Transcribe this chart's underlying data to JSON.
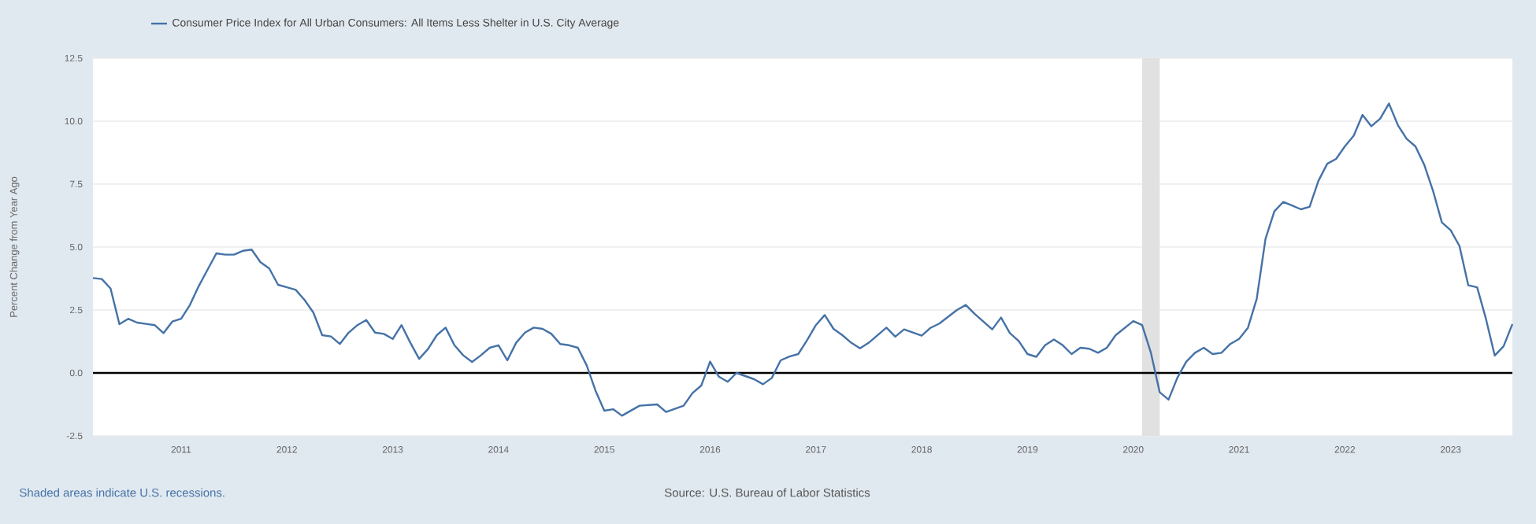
{
  "chart_data": {
    "type": "line",
    "ylabel": "Percent Change from Year Ago",
    "annotations": [
      "Shaded areas indicate U.S. recessions.",
      "Source: U.S. Bureau of Labor Statistics"
    ],
    "legend": "top left",
    "grid": "y",
    "line_style": "solid",
    "marker": "none",
    "xlim": [
      "2010-03",
      "2023-08"
    ],
    "xticks": [
      {
        "value": "2011",
        "label": "2011"
      },
      {
        "value": "2012",
        "label": "2012"
      },
      {
        "value": "2013",
        "label": "2013"
      },
      {
        "value": "2014",
        "label": "2014"
      },
      {
        "value": "2015",
        "label": "2015"
      },
      {
        "value": "2016",
        "label": "2016"
      },
      {
        "value": "2017",
        "label": "2017"
      },
      {
        "value": "2018",
        "label": "2018"
      },
      {
        "value": "2019",
        "label": "2019"
      },
      {
        "value": "2020",
        "label": "2020"
      },
      {
        "value": "2021",
        "label": "2021"
      },
      {
        "value": "2022",
        "label": "2022"
      },
      {
        "value": "2023",
        "label": "2023"
      }
    ],
    "ylim": [
      -2.5,
      12.5
    ],
    "yticks": [
      {
        "value": -2.5,
        "label": "-2.5"
      },
      {
        "value": 0,
        "label": "0.0"
      },
      {
        "value": 2.5,
        "label": "2.5"
      },
      {
        "value": 5,
        "label": "5.0"
      },
      {
        "value": 7.5,
        "label": "7.5"
      },
      {
        "value": 10,
        "label": "10.0"
      },
      {
        "value": 12.5,
        "label": "12.5"
      }
    ],
    "bands": [
      {
        "axis": "x",
        "from": "2020-02",
        "to": "2020-04",
        "color": "#e1e1e1"
      }
    ],
    "ref_lines": [
      {
        "axis": "y",
        "value": 0,
        "color": "#000000"
      }
    ],
    "x": [
      "2010-03",
      "2010-04",
      "2010-05",
      "2010-06",
      "2010-07",
      "2010-08",
      "2010-09",
      "2010-10",
      "2010-11",
      "2010-12",
      "2011-01",
      "2011-02",
      "2011-03",
      "2011-04",
      "2011-05",
      "2011-06",
      "2011-07",
      "2011-08",
      "2011-09",
      "2011-10",
      "2011-11",
      "2011-12",
      "2012-01",
      "2012-02",
      "2012-03",
      "2012-04",
      "2012-05",
      "2012-06",
      "2012-07",
      "2012-08",
      "2012-09",
      "2012-10",
      "2012-11",
      "2012-12",
      "2013-01",
      "2013-02",
      "2013-03",
      "2013-04",
      "2013-05",
      "2013-06",
      "2013-07",
      "2013-08",
      "2013-09",
      "2013-10",
      "2013-11",
      "2013-12",
      "2014-01",
      "2014-02",
      "2014-03",
      "2014-04",
      "2014-05",
      "2014-06",
      "2014-07",
      "2014-08",
      "2014-09",
      "2014-10",
      "2014-11",
      "2014-12",
      "2015-01",
      "2015-02",
      "2015-03",
      "2015-05",
      "2015-07",
      "2015-08",
      "2015-10",
      "2015-11",
      "2015-12",
      "2016-01",
      "2016-02",
      "2016-03",
      "2016-04",
      "2016-06",
      "2016-07",
      "2016-08",
      "2016-09",
      "2016-10",
      "2016-11",
      "2016-12",
      "2017-01",
      "2017-02",
      "2017-03",
      "2017-04",
      "2017-05",
      "2017-06",
      "2017-07",
      "2017-09",
      "2017-10",
      "2017-11",
      "2018-01",
      "2018-02",
      "2018-03",
      "2018-05",
      "2018-06",
      "2018-07",
      "2018-09",
      "2018-10",
      "2018-11",
      "2018-12",
      "2019-01",
      "2019-02",
      "2019-03",
      "2019-04",
      "2019-05",
      "2019-06",
      "2019-07",
      "2019-08",
      "2019-09",
      "2019-10",
      "2019-11",
      "2020-01",
      "2020-02",
      "2020-03",
      "2020-04",
      "2020-05",
      "2020-06",
      "2020-07",
      "2020-08",
      "2020-09",
      "2020-10",
      "2020-11",
      "2020-12",
      "2021-01",
      "2021-02",
      "2021-03",
      "2021-04",
      "2021-05",
      "2021-06",
      "2021-07",
      "2021-08",
      "2021-09",
      "2021-10",
      "2021-11",
      "2021-12",
      "2022-01",
      "2022-02",
      "2022-03",
      "2022-04",
      "2022-05",
      "2022-06",
      "2022-07",
      "2022-08",
      "2022-09",
      "2022-10",
      "2022-11",
      "2022-12",
      "2023-01",
      "2023-02",
      "2023-03",
      "2023-04",
      "2023-05",
      "2023-06",
      "2023-07",
      "2023-08"
    ],
    "series": [
      {
        "name": "Consumer Price Index for All Urban Consumers: All Items Less Shelter in U.S. City Average",
        "color": "#4572a7",
        "values": [
          3.77,
          3.73,
          3.35,
          1.94,
          2.15,
          2.0,
          1.95,
          1.9,
          1.58,
          2.04,
          2.15,
          2.7,
          3.45,
          4.1,
          4.75,
          4.7,
          4.7,
          4.85,
          4.9,
          4.4,
          4.15,
          3.5,
          3.4,
          3.3,
          2.9,
          2.4,
          1.5,
          1.45,
          1.15,
          1.6,
          1.9,
          2.1,
          1.6,
          1.55,
          1.35,
          1.9,
          1.2,
          0.56,
          0.95,
          1.5,
          1.8,
          1.1,
          0.7,
          0.44,
          0.7,
          1.0,
          1.1,
          0.5,
          1.2,
          1.6,
          1.8,
          1.75,
          1.55,
          1.15,
          1.1,
          1.0,
          0.3,
          -0.7,
          -1.5,
          -1.44,
          -1.7,
          -1.3,
          -1.25,
          -1.55,
          -1.3,
          -0.8,
          -0.5,
          0.45,
          -0.15,
          -0.35,
          0.0,
          -0.25,
          -0.45,
          -0.2,
          0.5,
          0.65,
          0.75,
          1.3,
          1.9,
          2.3,
          1.75,
          1.5,
          1.2,
          0.98,
          1.2,
          1.8,
          1.44,
          1.73,
          1.48,
          1.79,
          1.96,
          2.5,
          2.7,
          2.35,
          1.73,
          2.2,
          1.58,
          1.27,
          0.75,
          0.64,
          1.1,
          1.33,
          1.1,
          0.75,
          1.0,
          0.96,
          0.8,
          1.0,
          1.5,
          2.06,
          1.9,
          0.8,
          -0.77,
          -1.06,
          -0.19,
          0.44,
          0.8,
          1.0,
          0.75,
          0.8,
          1.15,
          1.35,
          1.79,
          2.94,
          5.33,
          6.42,
          6.79,
          6.65,
          6.5,
          6.6,
          7.63,
          8.31,
          8.5,
          9.0,
          9.42,
          10.25,
          9.8,
          10.1,
          10.7,
          9.85,
          9.3,
          9.0,
          8.27,
          7.23,
          5.98,
          5.67,
          5.04,
          3.48,
          3.4,
          2.15,
          0.69,
          1.06,
          1.94
        ]
      }
    ]
  }
}
